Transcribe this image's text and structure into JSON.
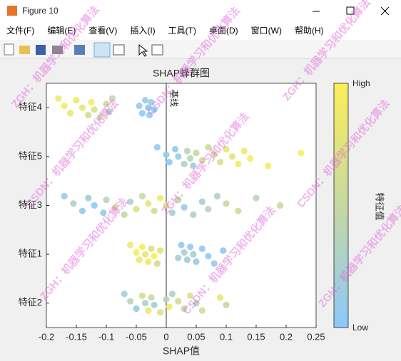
{
  "window": {
    "title": "Figure 10",
    "menus": [
      "文件(F)",
      "编辑(E)",
      "查看(V)",
      "插入(I)",
      "工具(T)",
      "桌面(D)",
      "窗口(W)",
      "帮助(H)"
    ]
  },
  "watermark": [
    "ZGH：机器学习和优化算法",
    "CSDN：机器学习和优化算法"
  ],
  "chart_data": {
    "type": "beeswarm",
    "title": "SHAP蜂群图",
    "xlabel": "SHAP值",
    "baseline_label": "基线",
    "xlim": [
      -0.2,
      0.25
    ],
    "xticks": [
      -0.2,
      -0.15,
      -0.1,
      -0.05,
      0,
      0.05,
      0.1,
      0.15,
      0.2,
      0.25
    ],
    "grid": false,
    "colorbar": {
      "label": "特征值",
      "high": "High",
      "low": "Low",
      "colormap": [
        "#8cc8fa",
        "#c6d8a2",
        "#fbee5a"
      ]
    },
    "series": [
      {
        "name": "特征4",
        "x": [
          -0.18,
          -0.17,
          -0.16,
          -0.15,
          -0.14,
          -0.13,
          -0.125,
          -0.12,
          -0.11,
          -0.1,
          -0.095,
          -0.09,
          -0.045,
          -0.04,
          -0.035,
          -0.03,
          -0.028,
          -0.025,
          -0.02
        ],
        "feature_values": [
          0.9,
          0.95,
          0.85,
          0.9,
          0.8,
          0.6,
          0.95,
          0.7,
          0.5,
          0.55,
          0.3,
          0.45,
          0.1,
          0.05,
          0.1,
          0.0,
          0.05,
          0.15,
          0.0
        ]
      },
      {
        "name": "特征5",
        "x": [
          -0.015,
          0.0,
          0.005,
          0.015,
          0.02,
          0.03,
          0.035,
          0.04,
          0.045,
          0.05,
          0.06,
          0.07,
          0.08,
          0.09,
          0.1,
          0.11,
          0.12,
          0.13,
          0.14,
          0.17,
          0.225
        ],
        "feature_values": [
          0.05,
          0.1,
          0.0,
          0.05,
          0.1,
          0.3,
          0.4,
          0.4,
          0.2,
          0.5,
          0.6,
          0.55,
          0.7,
          0.65,
          0.8,
          0.75,
          0.9,
          0.85,
          0.95,
          0.95,
          1.0
        ]
      },
      {
        "name": "特征3",
        "x": [
          -0.17,
          -0.155,
          -0.14,
          -0.13,
          -0.12,
          -0.105,
          -0.1,
          -0.085,
          -0.07,
          -0.06,
          -0.05,
          -0.04,
          -0.03,
          -0.02,
          -0.01,
          0.0,
          0.01,
          0.02,
          0.03,
          0.045,
          0.06,
          0.07,
          0.085,
          0.1,
          0.12,
          0.15,
          0.19
        ],
        "feature_values": [
          0.1,
          0.3,
          0.05,
          0.2,
          0.0,
          0.1,
          0.4,
          0.6,
          0.5,
          0.3,
          0.7,
          0.5,
          0.8,
          0.6,
          0.9,
          0.7,
          0.2,
          0.5,
          0.1,
          0.3,
          0.2,
          0.4,
          0.3,
          0.5,
          0.6,
          0.4,
          0.5
        ]
      },
      {
        "name": "特征1",
        "x": [
          -0.06,
          -0.05,
          -0.045,
          -0.04,
          -0.035,
          -0.03,
          -0.025,
          -0.02,
          -0.015,
          -0.01,
          0.02,
          0.025,
          0.03,
          0.035,
          0.04,
          0.045,
          0.05,
          0.06,
          0.07,
          0.08,
          0.095
        ],
        "feature_values": [
          0.9,
          0.95,
          0.85,
          1.0,
          0.8,
          0.9,
          0.7,
          0.95,
          0.6,
          0.75,
          0.2,
          0.1,
          0.3,
          0.15,
          0.05,
          0.25,
          0.1,
          0.0,
          0.05,
          0.1,
          0.0
        ]
      },
      {
        "name": "特征2",
        "x": [
          -0.07,
          -0.06,
          -0.05,
          -0.04,
          -0.035,
          -0.03,
          -0.025,
          -0.02,
          -0.01,
          0.0,
          0.005,
          0.01,
          0.02,
          0.03,
          0.04,
          0.05,
          0.06,
          0.09,
          0.1
        ],
        "feature_values": [
          0.2,
          0.4,
          0.1,
          0.6,
          0.3,
          0.8,
          0.5,
          0.2,
          0.7,
          0.4,
          0.9,
          0.3,
          0.6,
          0.5,
          0.7,
          0.4,
          0.6,
          0.8,
          0.5
        ]
      }
    ]
  }
}
